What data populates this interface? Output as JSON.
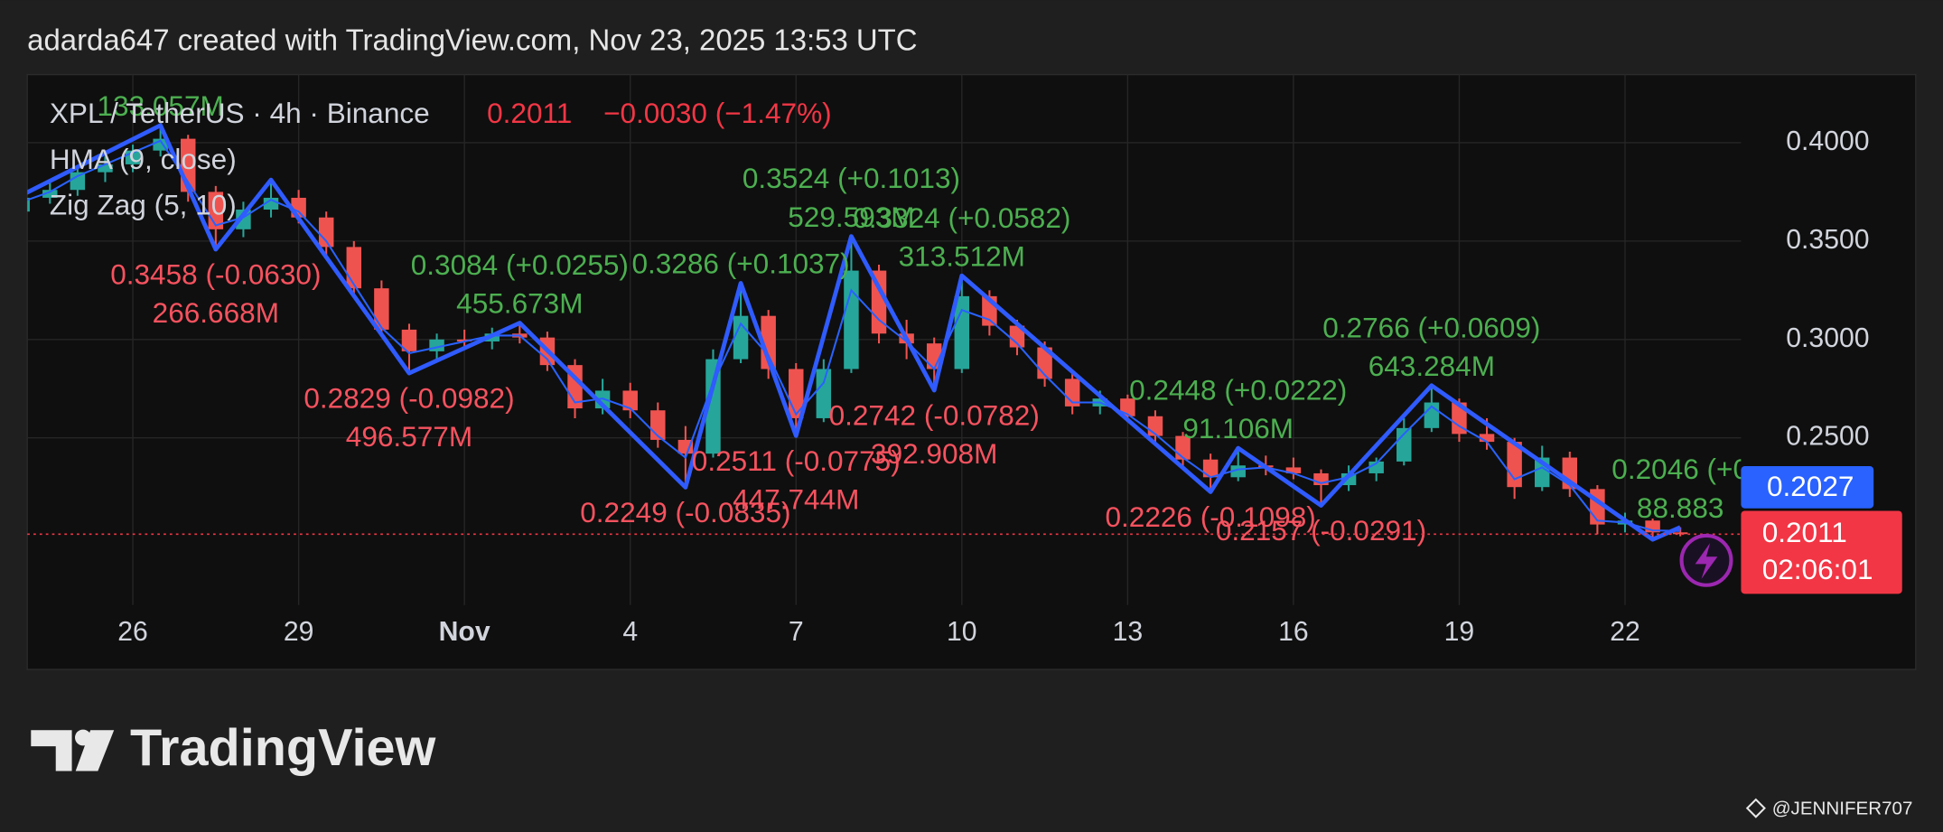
{
  "attribution": "adarda647 created with TradingView.com, Nov 23, 2025 13:53 UTC",
  "brand": "TradingView",
  "watermark": "@JENNIFER707",
  "chart_data": {
    "type": "candlestick",
    "title": "XPL / TetherUS · 4h · Binance",
    "last_price": {
      "value": 0.2011,
      "label": "0.2011"
    },
    "change": "−0.0030 (−1.47%)",
    "countdown": "02:06:01",
    "categories": [
      null,
      null,
      null,
      null,
      "26",
      null,
      null,
      null,
      null,
      null,
      "29",
      null,
      null,
      null,
      null,
      null,
      "Nov",
      null,
      null,
      null,
      null,
      null,
      "4",
      null,
      null,
      null,
      null,
      null,
      "7",
      null,
      null,
      null,
      null,
      null,
      "10",
      null,
      null,
      null,
      null,
      null,
      "13",
      null,
      null,
      null,
      null,
      null,
      "16",
      null,
      null,
      null,
      null,
      null,
      "19",
      null,
      null,
      null,
      null,
      null,
      "22",
      null,
      null
    ],
    "open": [
      0.365,
      0.372,
      0.376,
      0.385,
      0.389,
      0.396,
      0.402,
      0.375,
      0.356,
      0.366,
      0.372,
      0.362,
      0.347,
      0.326,
      0.305,
      0.294,
      0.3,
      0.299,
      0.303,
      0.301,
      0.287,
      0.265,
      0.274,
      0.264,
      0.249,
      0.242,
      0.29,
      0.312,
      0.285,
      0.26,
      0.285,
      0.335,
      0.303,
      0.298,
      0.285,
      0.322,
      0.307,
      0.296,
      0.28,
      0.266,
      0.27,
      0.261,
      0.251,
      0.239,
      0.23,
      0.236,
      0.235,
      0.232,
      0.226,
      0.232,
      0.238,
      0.255,
      0.268,
      0.252,
      0.248,
      0.225,
      0.24,
      0.224,
      0.206,
      0.208,
      0.202
    ],
    "high": [
      0.376,
      0.38,
      0.388,
      0.393,
      0.399,
      0.4088,
      0.404,
      0.378,
      0.37,
      0.3811,
      0.376,
      0.365,
      0.35,
      0.33,
      0.308,
      0.303,
      0.305,
      0.306,
      0.3084,
      0.304,
      0.29,
      0.28,
      0.278,
      0.268,
      0.256,
      0.295,
      0.3286,
      0.315,
      0.288,
      0.29,
      0.3524,
      0.338,
      0.31,
      0.301,
      0.3324,
      0.325,
      0.31,
      0.299,
      0.283,
      0.274,
      0.272,
      0.264,
      0.253,
      0.242,
      0.2448,
      0.241,
      0.24,
      0.234,
      0.236,
      0.24,
      0.26,
      0.2766,
      0.27,
      0.26,
      0.25,
      0.246,
      0.243,
      0.226,
      0.212,
      0.209,
      0.2046
    ],
    "low": [
      0.36,
      0.369,
      0.373,
      0.38,
      0.385,
      0.393,
      0.37,
      0.3458,
      0.352,
      0.362,
      0.359,
      0.343,
      0.322,
      0.302,
      0.2829,
      0.29,
      0.295,
      0.295,
      0.298,
      0.284,
      0.26,
      0.262,
      0.26,
      0.245,
      0.2249,
      0.24,
      0.288,
      0.28,
      0.2511,
      0.258,
      0.283,
      0.298,
      0.29,
      0.2742,
      0.283,
      0.302,
      0.292,
      0.276,
      0.262,
      0.262,
      0.258,
      0.248,
      0.235,
      0.2226,
      0.228,
      0.231,
      0.229,
      0.2157,
      0.223,
      0.228,
      0.236,
      0.253,
      0.248,
      0.244,
      0.219,
      0.223,
      0.22,
      0.201,
      0.202,
      0.1984,
      0.2
    ],
    "close": [
      0.372,
      0.376,
      0.385,
      0.389,
      0.396,
      0.402,
      0.375,
      0.356,
      0.366,
      0.372,
      0.362,
      0.347,
      0.326,
      0.305,
      0.294,
      0.3,
      0.299,
      0.303,
      0.301,
      0.287,
      0.265,
      0.274,
      0.264,
      0.249,
      0.242,
      0.29,
      0.312,
      0.285,
      0.26,
      0.285,
      0.335,
      0.303,
      0.298,
      0.285,
      0.322,
      0.307,
      0.296,
      0.28,
      0.266,
      0.27,
      0.261,
      0.251,
      0.239,
      0.23,
      0.236,
      0.235,
      0.232,
      0.226,
      0.232,
      0.238,
      0.255,
      0.268,
      0.252,
      0.248,
      0.225,
      0.24,
      0.224,
      0.206,
      0.208,
      0.202,
      0.2011
    ],
    "up_color": "#26a69a",
    "down_color": "#ef5350",
    "indicators": [
      {
        "name": "HMA (9, close)",
        "color": "#2962ff",
        "values": [
          0.37,
          0.375,
          0.383,
          0.389,
          0.395,
          0.401,
          0.38,
          0.358,
          0.362,
          0.371,
          0.365,
          0.35,
          0.328,
          0.306,
          0.293,
          0.296,
          0.299,
          0.302,
          0.302,
          0.29,
          0.268,
          0.27,
          0.265,
          0.251,
          0.24,
          0.278,
          0.308,
          0.292,
          0.262,
          0.278,
          0.325,
          0.31,
          0.299,
          0.285,
          0.315,
          0.31,
          0.298,
          0.282,
          0.268,
          0.268,
          0.262,
          0.252,
          0.24,
          0.23,
          0.234,
          0.235,
          0.232,
          0.227,
          0.23,
          0.237,
          0.252,
          0.266,
          0.256,
          0.248,
          0.229,
          0.235,
          0.226,
          0.208,
          0.207,
          0.203,
          0.2027
        ],
        "last_label": "0.2027"
      },
      {
        "name": "Zig Zag (5, 10)",
        "color": "#2f5bff",
        "up_label_color": "#4caf50",
        "down_label_color": "#f7525f",
        "x": [
          0,
          5,
          7,
          9,
          14,
          18,
          24,
          26,
          28,
          30,
          33,
          34,
          43,
          44,
          47,
          51,
          59,
          60
        ],
        "values": [
          0.3735,
          0.4088,
          0.3458,
          0.3811,
          0.2829,
          0.3084,
          0.2249,
          0.3286,
          0.2511,
          0.3524,
          0.2742,
          0.3324,
          0.2226,
          0.2448,
          0.2157,
          0.2766,
          0.1984,
          0.2046
        ],
        "labels": [
          null,
          [
            "133.057M"
          ],
          [
            "0.3458 (-0.0630)",
            "266.668M"
          ],
          null,
          [
            "0.2829 (-0.0982)",
            "496.577M"
          ],
          [
            "0.3084 (+0.0255)",
            "455.673M"
          ],
          [
            "0.2249 (-0.0835)"
          ],
          [
            "0.3286 (+0.1037)"
          ],
          [
            "0.2511 (-0.0775)",
            "447.744M"
          ],
          [
            "0.3524 (+0.1013)",
            "529.593M"
          ],
          [
            "0.2742 (-0.0782)",
            "392.908M"
          ],
          [
            "0.3324 (+0.0582)",
            "313.512M"
          ],
          [
            "0.2226 (-0.1098)"
          ],
          [
            "0.2448 (+0.0222)",
            "91.106M"
          ],
          [
            "0.2157 (-0.0291)"
          ],
          [
            "0.2766 (+0.0609)",
            "643.284M"
          ],
          null,
          [
            "0.2046 (+0",
            "88.883"
          ]
        ]
      }
    ],
    "ylim": [
      0.1651,
      0.4346
    ],
    "yticks": [
      {
        "value": 0.25,
        "label": "0.2500"
      },
      {
        "value": 0.3,
        "label": "0.3000"
      },
      {
        "value": 0.35,
        "label": "0.3500"
      },
      {
        "value": 0.4,
        "label": "0.4000"
      }
    ],
    "grid": true
  }
}
